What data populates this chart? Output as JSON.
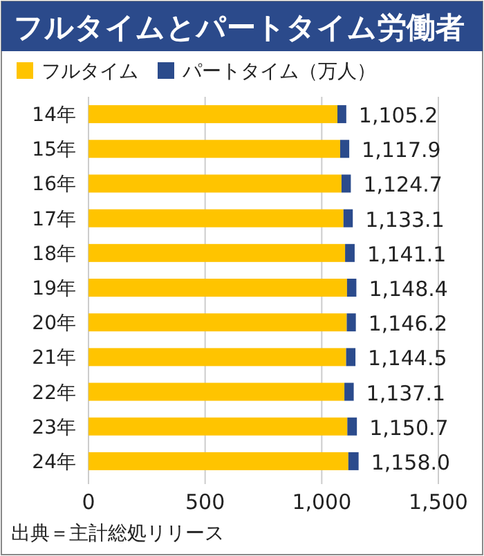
{
  "chart_data": {
    "type": "bar",
    "orientation": "horizontal",
    "stacked": true,
    "title": "フルタイムとパートタイム労働者",
    "categories": [
      "14年",
      "15年",
      "16年",
      "17年",
      "18年",
      "19年",
      "20年",
      "21年",
      "22年",
      "23年",
      "24年"
    ],
    "series": [
      {
        "name": "フルタイム",
        "color": "#ffc400",
        "values": [
          1067.2,
          1078.9,
          1084.7,
          1093.1,
          1100.1,
          1108.4,
          1107.2,
          1104.5,
          1097.1,
          1109.7,
          1114.0
        ]
      },
      {
        "name": "パートタイム（万人）",
        "color": "#2b4b8c",
        "values": [
          38,
          39,
          40,
          40,
          41,
          40,
          39,
          40,
          40,
          41,
          44
        ]
      }
    ],
    "totals": [
      "1,105.2",
      "1,117.9",
      "1,124.7",
      "1,133.1",
      "1,141.1",
      "1,148.4",
      "1,146.2",
      "1,144.5",
      "1,137.1",
      "1,150.7",
      "1,158.0"
    ],
    "xlim": [
      0,
      1500
    ],
    "xticks": [
      0,
      500,
      {
        "value": 1000,
        "label": "1,000"
      },
      {
        "value": 1500,
        "label": "1,500"
      }
    ],
    "grid": "x",
    "legend": "top left",
    "annotations": [
      "出典＝主計総処リリース"
    ]
  }
}
